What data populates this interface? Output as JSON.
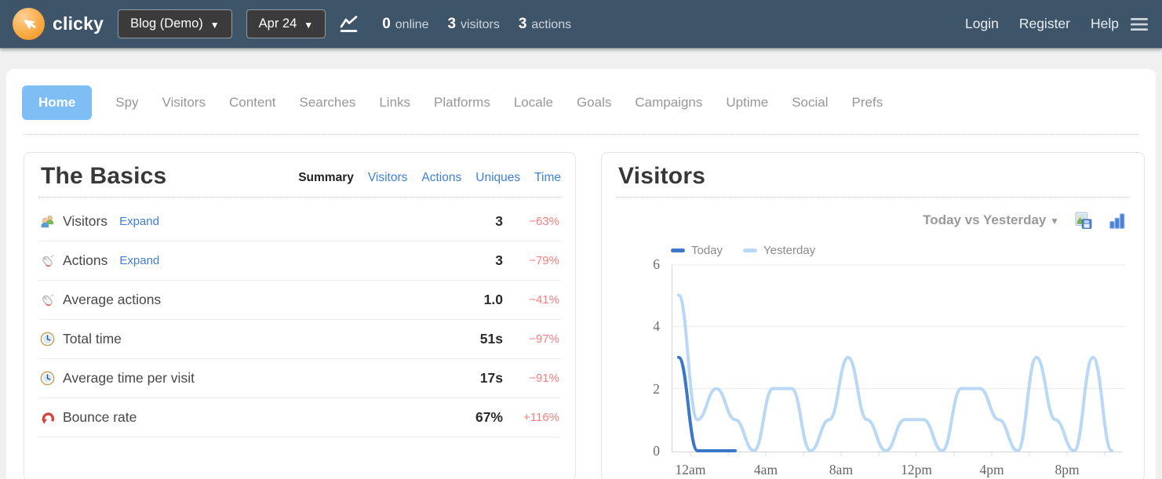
{
  "colors": {
    "header_bg": "#3d5469",
    "brand_orange": "#f5a033",
    "accent_active_tab": "#7ebef5",
    "link_blue": "#3d7fd9",
    "change_red": "#f47f7f",
    "today_line": "#3c76c8",
    "yesterday_line": "#b9d8f5"
  },
  "header": {
    "brand": "clicky",
    "site_dropdown": {
      "label": "Blog (Demo)",
      "arrow": "▼"
    },
    "date_dropdown": {
      "label": "Apr 24",
      "arrow": "▼"
    },
    "stats": [
      {
        "value": "0",
        "label": "online"
      },
      {
        "value": "3",
        "label": "visitors"
      },
      {
        "value": "3",
        "label": "actions"
      }
    ],
    "links": [
      {
        "label": "Login"
      },
      {
        "label": "Register"
      },
      {
        "label": "Help"
      }
    ]
  },
  "nav": {
    "items": [
      {
        "label": "Home",
        "active": true
      },
      {
        "label": "Spy"
      },
      {
        "label": "Visitors"
      },
      {
        "label": "Content"
      },
      {
        "label": "Searches"
      },
      {
        "label": "Links"
      },
      {
        "label": "Platforms"
      },
      {
        "label": "Locale"
      },
      {
        "label": "Goals"
      },
      {
        "label": "Campaigns"
      },
      {
        "label": "Uptime"
      },
      {
        "label": "Social"
      },
      {
        "label": "Prefs"
      }
    ]
  },
  "basics": {
    "title": "The Basics",
    "tabs": [
      {
        "label": "Summary",
        "active": true
      },
      {
        "label": "Visitors"
      },
      {
        "label": "Actions"
      },
      {
        "label": "Uniques"
      },
      {
        "label": "Time"
      }
    ],
    "rows": [
      {
        "icon": "people-icon",
        "label": "Visitors",
        "expand": "Expand",
        "value": "3",
        "change": "−63%"
      },
      {
        "icon": "mouse-icon",
        "label": "Actions",
        "expand": "Expand",
        "value": "3",
        "change": "−79%"
      },
      {
        "icon": "mouse-icon",
        "label": "Average actions",
        "value": "1.0",
        "change": "−41%"
      },
      {
        "icon": "clock-icon",
        "label": "Total time",
        "value": "51s",
        "change": "−97%"
      },
      {
        "icon": "clock-icon",
        "label": "Average time per visit",
        "value": "17s",
        "change": "−91%"
      },
      {
        "icon": "bounce-icon",
        "label": "Bounce rate",
        "value": "67%",
        "change": "+116%"
      }
    ]
  },
  "visitors_panel": {
    "title": "Visitors",
    "comparison": {
      "label": "Today vs Yesterday",
      "arrow": "▼"
    },
    "icons": [
      "save-image-icon",
      "bar-chart-icon"
    ]
  },
  "chart_data": {
    "type": "line",
    "title": "Visitors",
    "x_unit": "hour of day",
    "x_tick_labels": [
      "12am",
      "4am",
      "8am",
      "12pm",
      "4pm",
      "8pm"
    ],
    "yticks": [
      0,
      2,
      4,
      6
    ],
    "ylim": [
      0,
      6
    ],
    "grid": true,
    "legend_position": "top-left",
    "series": [
      {
        "name": "Today",
        "color": "#3c76c8",
        "values": [
          3,
          0,
          0,
          0
        ]
      },
      {
        "name": "Yesterday",
        "color": "#b9d8f5",
        "values": [
          5,
          1,
          2,
          1,
          0,
          2,
          2,
          0,
          1,
          3,
          1,
          0,
          1,
          1,
          0,
          2,
          2,
          1,
          0,
          3,
          1,
          0,
          3,
          0
        ]
      }
    ]
  }
}
